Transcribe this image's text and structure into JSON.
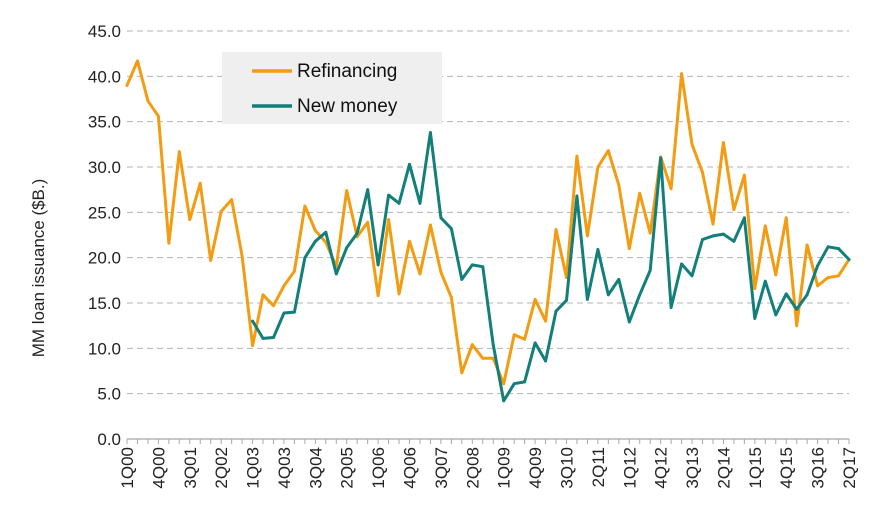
{
  "chart_data": {
    "type": "line",
    "title": "",
    "ylabel": "MM loan issuance ($B.)",
    "xlabel": "",
    "ylim": [
      0,
      45
    ],
    "yticks": [
      "0.0",
      "5.0",
      "10.0",
      "15.0",
      "20.0",
      "25.0",
      "30.0",
      "35.0",
      "40.0",
      "45.0"
    ],
    "grid": "horizontal dashed",
    "legend": "top-left (inset box)",
    "xtick_labels": [
      "1Q00",
      "4Q00",
      "3Q01",
      "2Q02",
      "1Q03",
      "4Q03",
      "3Q04",
      "2Q05",
      "1Q06",
      "4Q06",
      "3Q07",
      "2Q08",
      "1Q09",
      "4Q09",
      "3Q10",
      "2Q11",
      "1Q12",
      "4Q12",
      "3Q13",
      "2Q14",
      "1Q15",
      "4Q15",
      "3Q16",
      "2Q17"
    ],
    "x": [
      "1Q00",
      "2Q00",
      "3Q00",
      "4Q00",
      "1Q01",
      "2Q01",
      "3Q01",
      "4Q01",
      "1Q02",
      "2Q02",
      "3Q02",
      "4Q02",
      "1Q03",
      "2Q03",
      "3Q03",
      "4Q03",
      "1Q04",
      "2Q04",
      "3Q04",
      "4Q04",
      "1Q05",
      "2Q05",
      "3Q05",
      "4Q05",
      "1Q06",
      "2Q06",
      "3Q06",
      "4Q06",
      "1Q07",
      "2Q07",
      "3Q07",
      "4Q07",
      "1Q08",
      "2Q08",
      "3Q08",
      "4Q08",
      "1Q09",
      "2Q09",
      "3Q09",
      "4Q09",
      "1Q10",
      "2Q10",
      "3Q10",
      "4Q10",
      "1Q11",
      "2Q11",
      "3Q11",
      "4Q11",
      "1Q12",
      "2Q12",
      "3Q12",
      "4Q12",
      "1Q13",
      "2Q13",
      "3Q13",
      "4Q13",
      "1Q14",
      "2Q14",
      "3Q14",
      "4Q14",
      "1Q15",
      "2Q15",
      "3Q15",
      "4Q15",
      "1Q16",
      "2Q16",
      "3Q16",
      "4Q16",
      "1Q17",
      "2Q17"
    ],
    "series": [
      {
        "name": "Refinancing",
        "color": "#F39C12",
        "values": [
          39.0,
          41.7,
          37.3,
          35.6,
          21.6,
          31.7,
          24.2,
          28.2,
          19.7,
          25.1,
          26.4,
          20.2,
          10.3,
          15.9,
          14.7,
          16.9,
          18.5,
          25.7,
          23.0,
          21.7,
          19.0,
          27.4,
          22.3,
          23.9,
          15.8,
          24.2,
          16.0,
          21.8,
          18.2,
          23.6,
          18.4,
          15.6,
          7.3,
          10.4,
          8.9,
          8.9,
          6.1,
          11.5,
          11.0,
          15.4,
          13.0,
          23.1,
          17.8,
          31.2,
          22.4,
          30.0,
          31.8,
          28.0,
          21.0,
          27.1,
          22.7,
          31.1,
          27.6,
          40.3,
          32.5,
          29.4,
          23.7,
          32.7,
          25.3,
          29.1,
          16.6,
          23.5,
          18.1,
          24.4,
          12.5,
          21.4,
          16.9,
          17.8,
          18.0,
          19.8
        ]
      },
      {
        "name": "New money",
        "color": "#127F7A",
        "values": [
          null,
          null,
          null,
          null,
          null,
          null,
          null,
          null,
          null,
          null,
          null,
          null,
          13.0,
          11.1,
          11.2,
          13.9,
          14.0,
          20.0,
          21.8,
          22.8,
          18.2,
          21.1,
          22.7,
          27.5,
          19.2,
          26.9,
          26.0,
          30.3,
          26.0,
          33.8,
          24.4,
          23.2,
          17.6,
          19.2,
          19.0,
          10.4,
          4.2,
          6.1,
          6.3,
          10.6,
          8.6,
          14.1,
          15.3,
          26.8,
          15.4,
          20.9,
          15.9,
          17.6,
          12.9,
          15.9,
          18.6,
          31.0,
          14.5,
          19.3,
          18.0,
          22.0,
          22.4,
          22.6,
          21.8,
          24.4,
          13.3,
          17.4,
          13.7,
          16.0,
          14.3,
          15.9,
          19.1,
          21.2,
          21.0,
          19.8
        ]
      }
    ]
  }
}
